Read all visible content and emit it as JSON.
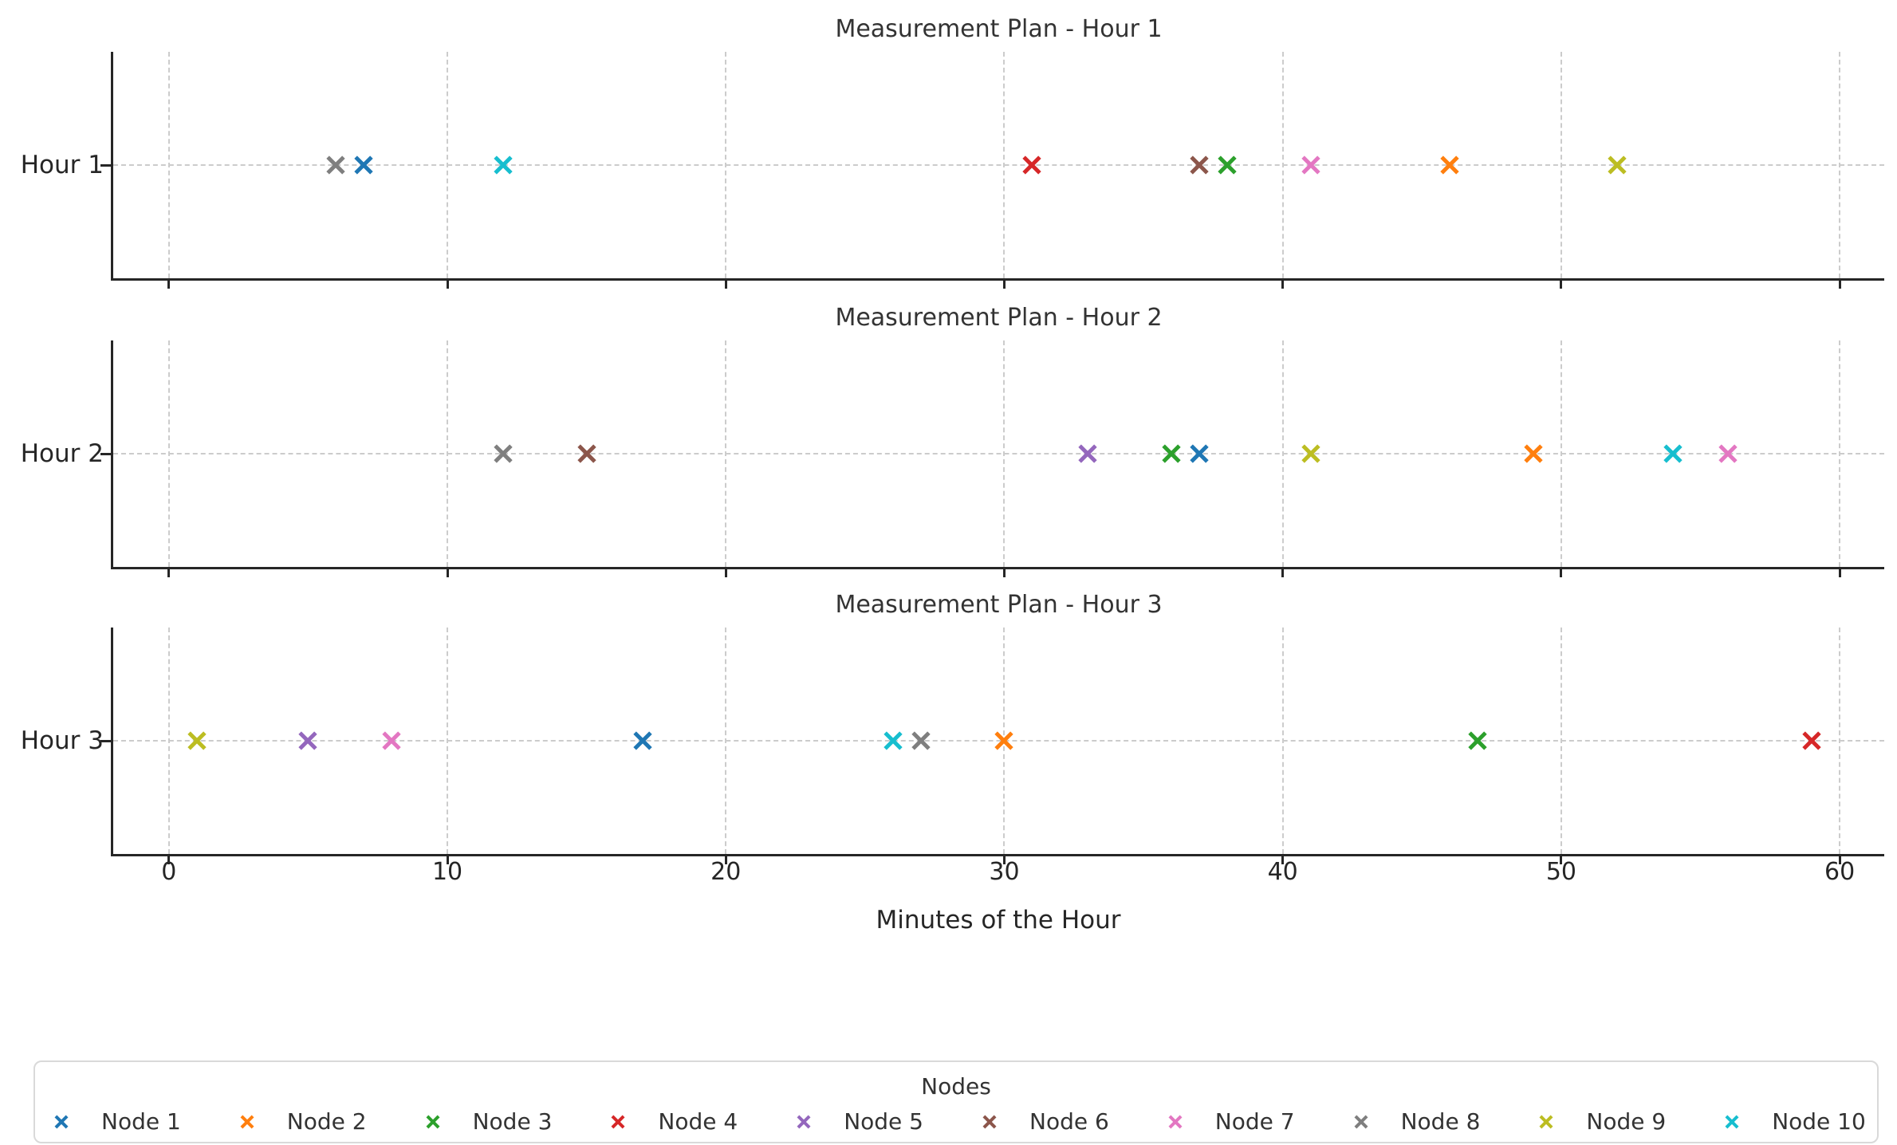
{
  "figure": {
    "background": "#ffffff",
    "text_color": "#262626",
    "title_color": "#333333",
    "grid_color": "#cccccc",
    "spine_color": "#262626",
    "legend_border_color": "#d9d9d9"
  },
  "legend": {
    "title": "Nodes"
  },
  "chart_data": {
    "type": "scatter",
    "marker": "x",
    "title": "Measurement Plan (3 hourly subplots)",
    "xlabel": "Minutes of the Hour",
    "x_ticks": [
      0,
      10,
      20,
      30,
      40,
      50,
      60
    ],
    "xlim": [
      -2,
      61.6
    ],
    "grid": "dashed vertical gridlines at each 10-minute tick; dashed horizontal line at each hour row",
    "legend_position": "bottom",
    "nodes": [
      {
        "name": "Node 1",
        "color": "#1f77b4"
      },
      {
        "name": "Node 2",
        "color": "#ff7f0e"
      },
      {
        "name": "Node 3",
        "color": "#2ca02c"
      },
      {
        "name": "Node 4",
        "color": "#d62728"
      },
      {
        "name": "Node 5",
        "color": "#9467bd"
      },
      {
        "name": "Node 6",
        "color": "#8c564b"
      },
      {
        "name": "Node 7",
        "color": "#e377c2"
      },
      {
        "name": "Node 8",
        "color": "#7f7f7f"
      },
      {
        "name": "Node 9",
        "color": "#bcbd22"
      },
      {
        "name": "Node 10",
        "color": "#17becf"
      }
    ],
    "subplots": [
      {
        "title": "Measurement Plan - Hour 1",
        "row_label": "Hour 1",
        "points": [
          {
            "node": "Node 8",
            "minute": 6
          },
          {
            "node": "Node 1",
            "minute": 7
          },
          {
            "node": "Node 10",
            "minute": 12
          },
          {
            "node": "Node 4",
            "minute": 31
          },
          {
            "node": "Node 6",
            "minute": 37
          },
          {
            "node": "Node 3",
            "minute": 38
          },
          {
            "node": "Node 7",
            "minute": 41
          },
          {
            "node": "Node 2",
            "minute": 46
          },
          {
            "node": "Node 9",
            "minute": 52
          }
        ]
      },
      {
        "title": "Measurement Plan - Hour 2",
        "row_label": "Hour 2",
        "points": [
          {
            "node": "Node 8",
            "minute": 12
          },
          {
            "node": "Node 6",
            "minute": 15
          },
          {
            "node": "Node 5",
            "minute": 33
          },
          {
            "node": "Node 3",
            "minute": 36
          },
          {
            "node": "Node 1",
            "minute": 37
          },
          {
            "node": "Node 9",
            "minute": 41
          },
          {
            "node": "Node 2",
            "minute": 49
          },
          {
            "node": "Node 10",
            "minute": 54
          },
          {
            "node": "Node 7",
            "minute": 56
          }
        ]
      },
      {
        "title": "Measurement Plan - Hour 3",
        "row_label": "Hour 3",
        "points": [
          {
            "node": "Node 9",
            "minute": 1
          },
          {
            "node": "Node 5",
            "minute": 5
          },
          {
            "node": "Node 7",
            "minute": 8
          },
          {
            "node": "Node 1",
            "minute": 17
          },
          {
            "node": "Node 10",
            "minute": 26
          },
          {
            "node": "Node 8",
            "minute": 27
          },
          {
            "node": "Node 2",
            "minute": 30
          },
          {
            "node": "Node 3",
            "minute": 47
          },
          {
            "node": "Node 4",
            "minute": 59
          }
        ]
      }
    ]
  }
}
